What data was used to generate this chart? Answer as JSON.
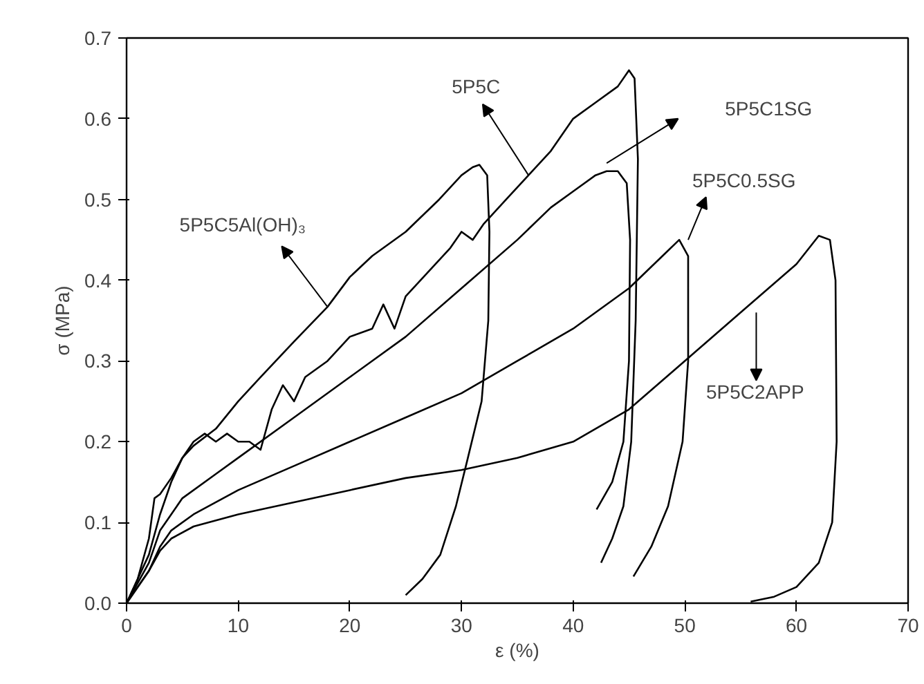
{
  "chart_data": {
    "type": "line",
    "xlabel": "ε (%)",
    "ylabel": "σ (MPa)",
    "xlim": [
      0,
      70
    ],
    "xticks": [
      0,
      10,
      20,
      30,
      40,
      50,
      60,
      70
    ],
    "ylim": [
      0,
      0.7
    ],
    "yticks": [
      {
        "value": 0,
        "label": "0.0"
      },
      0.1,
      0.2,
      0.3,
      0.4,
      0.5,
      0.6,
      0.7
    ],
    "grid": false,
    "marker": "none",
    "line_style": "solid",
    "series": [
      {
        "color": "#000000",
        "x": [
          0,
          1,
          2,
          2.5,
          3,
          4,
          5,
          6,
          8,
          10,
          12,
          15,
          18,
          20,
          22,
          25,
          28,
          30,
          31,
          31.6,
          32.3,
          32.5,
          32.4,
          31.8,
          30.5,
          29.5,
          28.1,
          26.5,
          25
        ],
        "values": [
          0,
          0.03,
          0.08,
          0.13,
          0.135,
          0.155,
          0.18,
          0.195,
          0.216,
          0.25,
          0.28,
          0.324,
          0.367,
          0.404,
          0.43,
          0.46,
          0.5,
          0.53,
          0.54,
          0.543,
          0.53,
          0.46,
          0.35,
          0.25,
          0.176,
          0.12,
          0.06,
          0.03,
          0.01
        ]
      },
      {
        "color": "#000000",
        "x": [
          0,
          2,
          3,
          4,
          5,
          6,
          7,
          8,
          9,
          10,
          11,
          12,
          13,
          14,
          15,
          16,
          18,
          20,
          22,
          23,
          24,
          25,
          27,
          29,
          30,
          31,
          32,
          34,
          36,
          38,
          40,
          42,
          44,
          45,
          45.5,
          45.8,
          45.6,
          45.2,
          44.5,
          43.5,
          42.5
        ],
        "values": [
          0,
          0.06,
          0.11,
          0.15,
          0.18,
          0.2,
          0.21,
          0.2,
          0.21,
          0.2,
          0.2,
          0.19,
          0.24,
          0.27,
          0.25,
          0.28,
          0.3,
          0.33,
          0.34,
          0.37,
          0.34,
          0.38,
          0.41,
          0.44,
          0.46,
          0.45,
          0.47,
          0.5,
          0.53,
          0.56,
          0.6,
          0.62,
          0.64,
          0.66,
          0.65,
          0.55,
          0.35,
          0.2,
          0.12,
          0.08,
          0.05
        ]
      },
      {
        "color": "#000000",
        "x": [
          0,
          2,
          3,
          4,
          5,
          8,
          10,
          15,
          20,
          25,
          30,
          35,
          38,
          40,
          42,
          43,
          44,
          44.8,
          45.1,
          45,
          44.5,
          43.5,
          42.1
        ],
        "values": [
          0,
          0.05,
          0.09,
          0.11,
          0.13,
          0.16,
          0.18,
          0.23,
          0.28,
          0.33,
          0.39,
          0.45,
          0.49,
          0.51,
          0.53,
          0.535,
          0.535,
          0.52,
          0.45,
          0.3,
          0.2,
          0.15,
          0.116
        ]
      },
      {
        "color": "#000000",
        "x": [
          0,
          2,
          3,
          4,
          6,
          10,
          15,
          20,
          25,
          30,
          35,
          40,
          45,
          48,
          49.5,
          50.3,
          50.3,
          49.8,
          48.5,
          47,
          45.4
        ],
        "values": [
          0,
          0.04,
          0.07,
          0.09,
          0.11,
          0.14,
          0.17,
          0.2,
          0.23,
          0.26,
          0.3,
          0.34,
          0.39,
          0.43,
          0.45,
          0.43,
          0.3,
          0.2,
          0.12,
          0.07,
          0.033
        ]
      },
      {
        "color": "#000000",
        "x": [
          0,
          2,
          3,
          4,
          6,
          10,
          15,
          20,
          25,
          30,
          35,
          40,
          45,
          50,
          55,
          60,
          62,
          63,
          63.5,
          63.6,
          63.2,
          62,
          60,
          58,
          55.9
        ],
        "values": [
          0,
          0.04,
          0.065,
          0.08,
          0.095,
          0.11,
          0.125,
          0.14,
          0.155,
          0.165,
          0.18,
          0.2,
          0.24,
          0.3,
          0.36,
          0.42,
          0.455,
          0.45,
          0.4,
          0.2,
          0.1,
          0.05,
          0.02,
          0.008,
          0.002
        ]
      }
    ],
    "annotations": [
      "5P5C5Al(OH)₃",
      "5P5C",
      "5P5C1SG",
      "5P5C0.5SG",
      "5P5C2APP"
    ]
  }
}
